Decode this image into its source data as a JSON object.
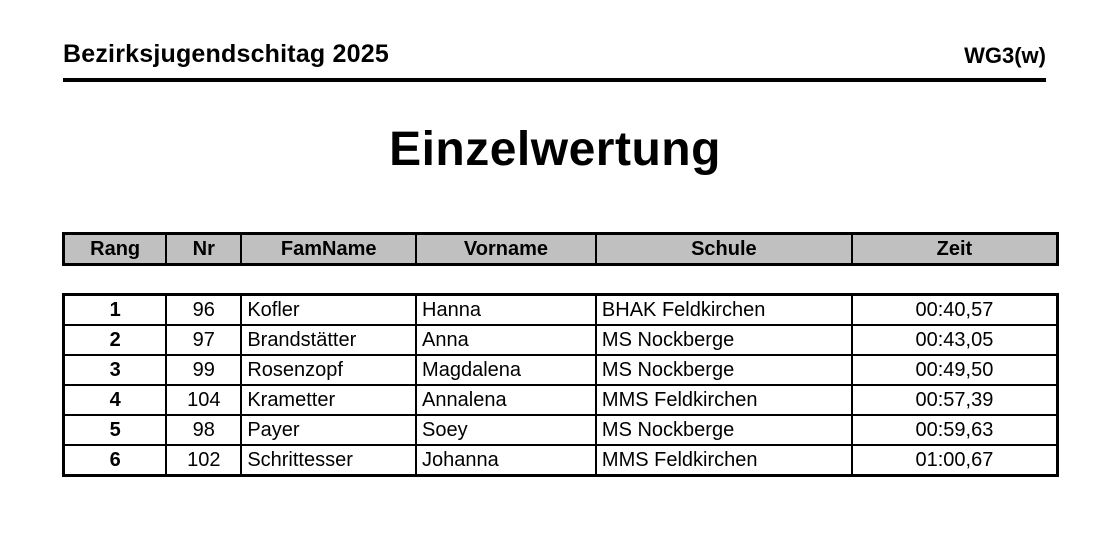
{
  "document": {
    "event_title": "Bezirksjugendschitag 2025",
    "category_label": "WG3(w)",
    "page_title": "Einzelwertung"
  },
  "table": {
    "columns": [
      "Rang",
      "Nr",
      "FamName",
      "Vorname",
      "Schule",
      "Zeit"
    ],
    "rows": [
      [
        "1",
        "96",
        "Kofler",
        "Hanna",
        "BHAK Feldkirchen",
        "00:40,57"
      ],
      [
        "2",
        "97",
        "Brandstätter",
        "Anna",
        "MS Nockberge",
        "00:43,05"
      ],
      [
        "3",
        "99",
        "Rosenzopf",
        "Magdalena",
        "MS Nockberge",
        "00:49,50"
      ],
      [
        "4",
        "104",
        "Krametter",
        "Annalena",
        "MMS Feldkirchen",
        "00:57,39"
      ],
      [
        "5",
        "98",
        "Payer",
        "Soey",
        "MS Nockberge",
        "00:59,63"
      ],
      [
        "6",
        "102",
        "Schrittesser",
        "Johanna",
        "MMS Feldkirchen",
        "01:00,67"
      ]
    ]
  },
  "colors": {
    "header_row_bg": "#c0c0c0",
    "border": "#000000",
    "text": "#000000",
    "page_bg": "#ffffff"
  }
}
